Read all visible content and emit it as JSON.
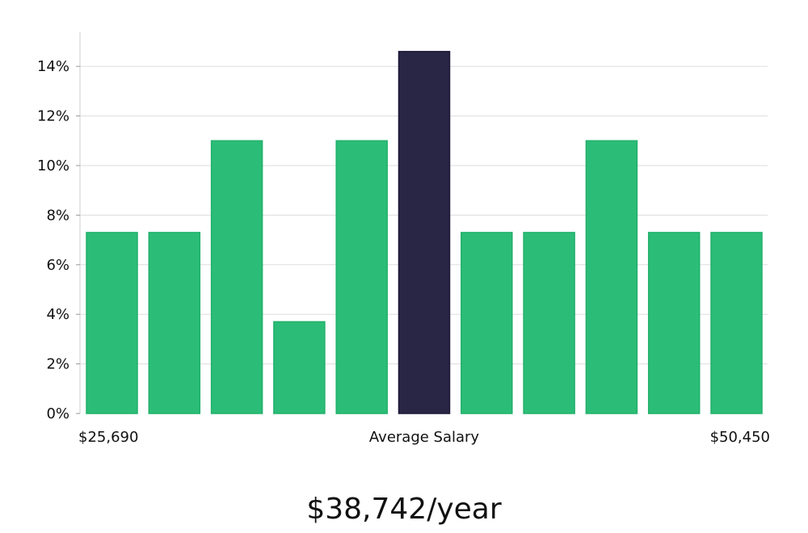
{
  "chart_data": {
    "type": "bar",
    "title": "",
    "xlabel": "Average Salary",
    "ylabel": "",
    "ylim": [
      0,
      15
    ],
    "yticks": [
      0,
      2,
      4,
      6,
      8,
      10,
      12,
      14
    ],
    "ytick_suffix": "%",
    "x_min_label": "$25,690",
    "x_max_label": "$50,450",
    "values": [
      7.3,
      7.3,
      11.0,
      3.7,
      11.0,
      14.6,
      7.3,
      7.3,
      11.0,
      7.3,
      7.3
    ],
    "highlight_index": 5,
    "colors": {
      "bar": "#2bbd77",
      "highlight": "#292544",
      "grid": "#dddddd",
      "axis": "#cccccc"
    }
  },
  "summary": {
    "salary_text": "$38,742/year"
  }
}
